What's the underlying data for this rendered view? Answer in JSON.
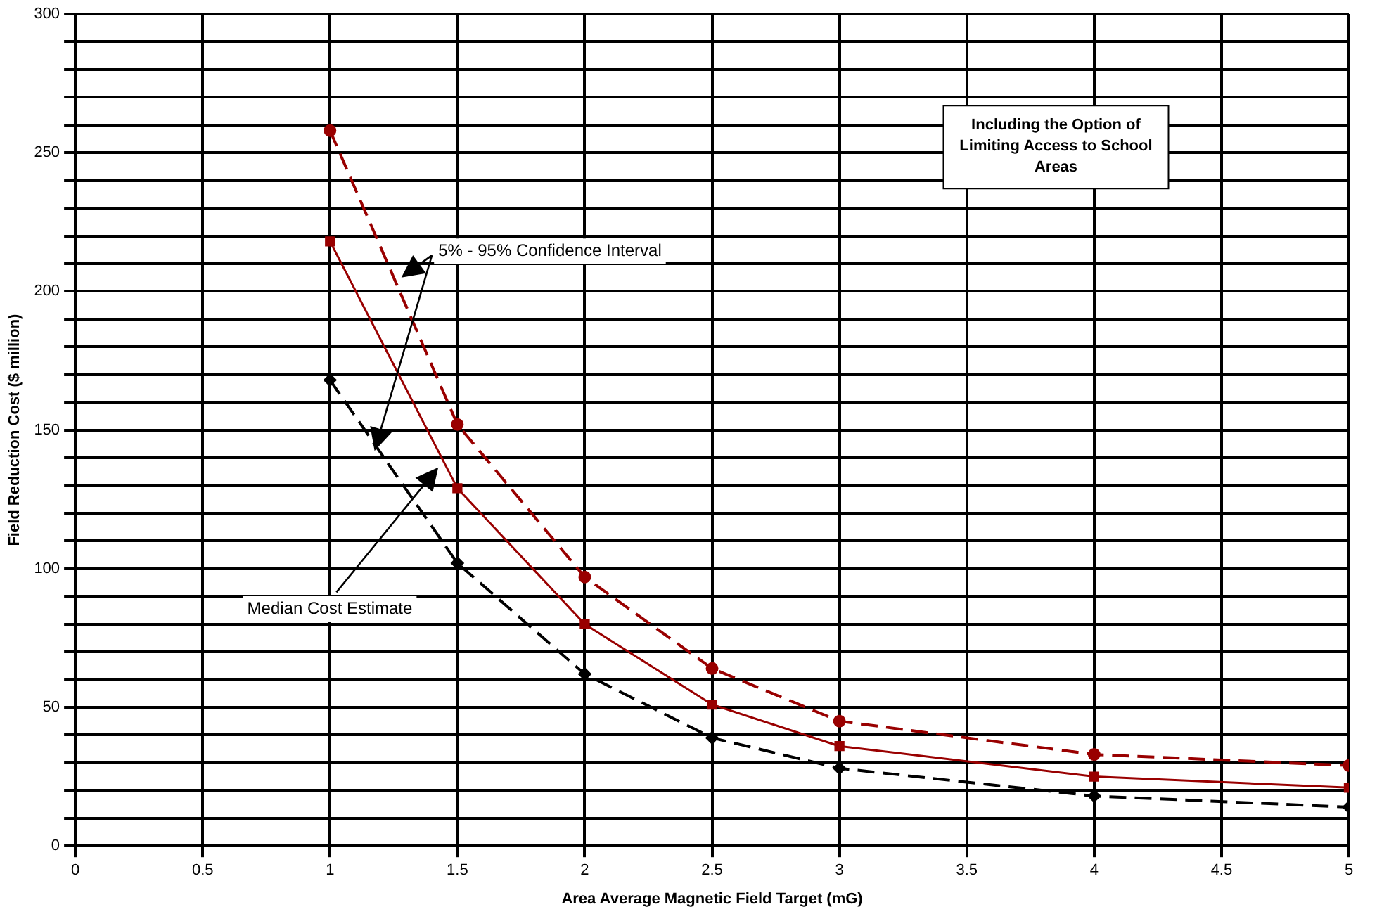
{
  "chart_data": {
    "type": "line",
    "xlabel": "Area Average Magnetic Field Target (mG)",
    "ylabel": "Field Reduction Cost ($ million)",
    "x": [
      1,
      1.5,
      2,
      2.5,
      3,
      4,
      5
    ],
    "series": [
      {
        "color": "#990000",
        "marker": "circle",
        "line_style": "dashed",
        "values": [
          258,
          152,
          97,
          64,
          45,
          33,
          29
        ]
      },
      {
        "color": "#990000",
        "marker": "square",
        "line_style": "solid",
        "values": [
          218,
          129,
          80,
          51,
          36,
          25,
          21
        ]
      },
      {
        "color": "#000000",
        "marker": "diamond",
        "line_style": "dashed",
        "values": [
          168,
          102,
          62,
          39,
          28,
          18,
          14
        ]
      }
    ],
    "xlim": [
      0,
      5
    ],
    "xticks": [
      0,
      0.5,
      1,
      1.5,
      2,
      2.5,
      3,
      3.5,
      4,
      4.5,
      5
    ],
    "ylim": [
      0,
      300
    ],
    "yticks": [
      0,
      {
        "value": 10,
        "label": null
      },
      {
        "value": 20,
        "label": null
      },
      {
        "value": 30,
        "label": null
      },
      {
        "value": 40,
        "label": null
      },
      50,
      {
        "value": 60,
        "label": null
      },
      {
        "value": 70,
        "label": null
      },
      {
        "value": 80,
        "label": null
      },
      {
        "value": 90,
        "label": null
      },
      100,
      {
        "value": 110,
        "label": null
      },
      {
        "value": 120,
        "label": null
      },
      {
        "value": 130,
        "label": null
      },
      {
        "value": 140,
        "label": null
      },
      150,
      {
        "value": 160,
        "label": null
      },
      {
        "value": 170,
        "label": null
      },
      {
        "value": 180,
        "label": null
      },
      {
        "value": 190,
        "label": null
      },
      200,
      {
        "value": 210,
        "label": null
      },
      {
        "value": 220,
        "label": null
      },
      {
        "value": 230,
        "label": null
      },
      {
        "value": 240,
        "label": null
      },
      250,
      {
        "value": 260,
        "label": null
      },
      {
        "value": 270,
        "label": null
      },
      {
        "value": 280,
        "label": null
      },
      {
        "value": 290,
        "label": null
      },
      300
    ],
    "grid": true,
    "legend": false,
    "annotations": [
      "Including the Option of Limiting Access to School Areas",
      {
        "text": "5% - 95% Confidence Interval",
        "x": 1.28,
        "y": 205
      },
      "Median Cost Estimate"
    ]
  }
}
